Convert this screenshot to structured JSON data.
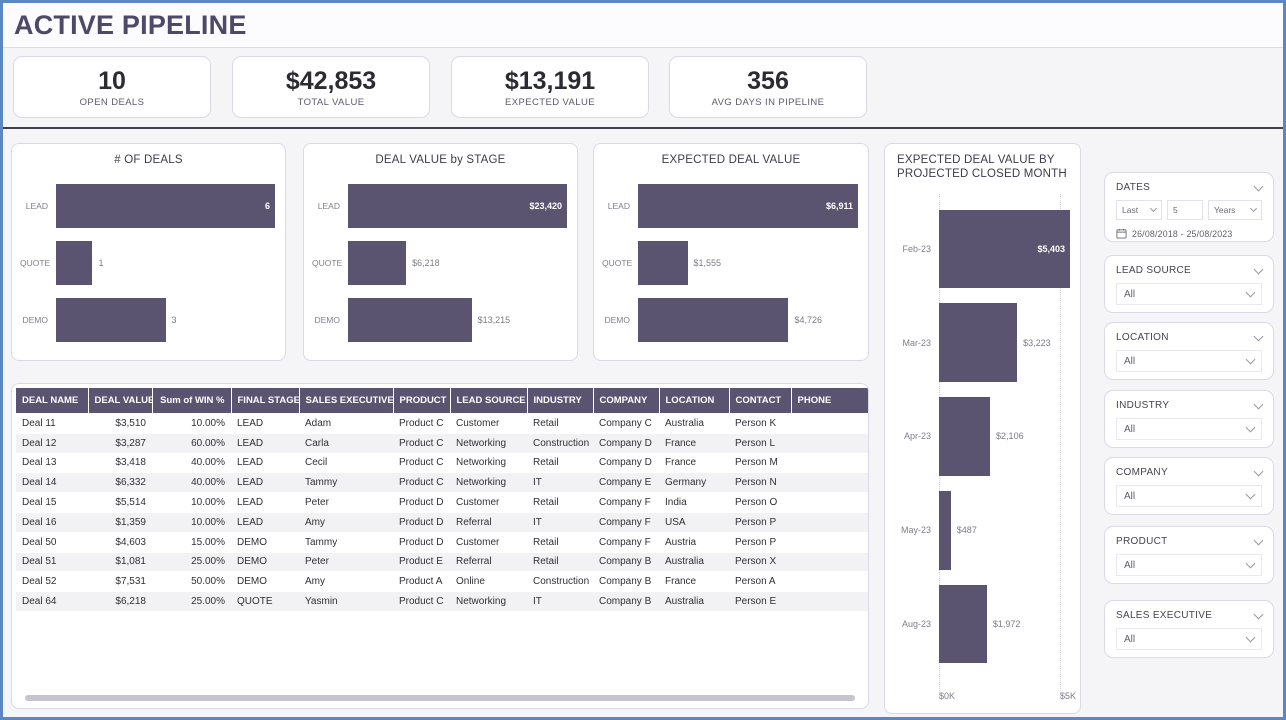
{
  "page": {
    "title": "ACTIVE PIPELINE",
    "accent_color": "#5B5471",
    "frame_color": "#5B87C5"
  },
  "kpis": [
    {
      "value": "10",
      "label": "OPEN DEALS"
    },
    {
      "value": "$42,853",
      "label": "TOTAL VALUE"
    },
    {
      "value": "$13,191",
      "label": "EXPECTED VALUE"
    },
    {
      "value": "356",
      "label": "AVG DAYS IN PIPELINE"
    }
  ],
  "chart_data": [
    {
      "type": "bar",
      "orientation": "horizontal",
      "title": "# OF DEALS",
      "categories": [
        "LEAD",
        "QUOTE",
        "DEMO"
      ],
      "values": [
        6,
        1,
        3
      ],
      "labels": [
        "6",
        "1",
        "3"
      ],
      "xlim": [
        0,
        6
      ],
      "grid": false,
      "bar_color": "#5B5471"
    },
    {
      "type": "bar",
      "orientation": "horizontal",
      "title": "DEAL VALUE by STAGE",
      "categories": [
        "LEAD",
        "QUOTE",
        "DEMO"
      ],
      "values": [
        23420,
        6218,
        13215
      ],
      "labels": [
        "$23,420",
        "$6,218",
        "$13,215"
      ],
      "xlim": [
        0,
        23420
      ],
      "grid": false,
      "bar_color": "#5B5471"
    },
    {
      "type": "bar",
      "orientation": "horizontal",
      "title": "EXPECTED DEAL VALUE",
      "categories": [
        "LEAD",
        "QUOTE",
        "DEMO"
      ],
      "values": [
        6911,
        1555,
        4726
      ],
      "labels": [
        "$6,911",
        "$1,555",
        "$4,726"
      ],
      "xlim": [
        0,
        6911
      ],
      "grid": false,
      "bar_color": "#5B5471"
    },
    {
      "type": "bar",
      "orientation": "horizontal",
      "title": "EXPECTED DEAL VALUE BY PROJECTED CLOSED MONTH",
      "categories": [
        "Feb-23",
        "Mar-23",
        "Apr-23",
        "May-23",
        "Aug-23"
      ],
      "values": [
        5403,
        3223,
        2106,
        487,
        1972
      ],
      "labels": [
        "$5,403",
        "$3,223",
        "$2,106",
        "$487",
        "$1,972"
      ],
      "x_ticks": [
        "$0K",
        "$5K"
      ],
      "x_tick_values": [
        0,
        5000
      ],
      "xlim": [
        0,
        5403
      ],
      "grid": true,
      "bar_color": "#5B5471"
    }
  ],
  "table": {
    "columns": [
      {
        "label": "DEAL NAME",
        "align": "left",
        "width": 72
      },
      {
        "label": "DEAL VALUE",
        "align": "right",
        "width": 64
      },
      {
        "label": "Sum of WIN %",
        "align": "right",
        "width": 79
      },
      {
        "label": "FINAL STAGE",
        "align": "left",
        "width": 68
      },
      {
        "label": "SALES EXECUTIVE",
        "align": "left",
        "width": 94
      },
      {
        "label": "PRODUCT",
        "align": "left",
        "width": 57
      },
      {
        "label": "LEAD SOURCE",
        "align": "left",
        "width": 77
      },
      {
        "label": "INDUSTRY",
        "align": "left",
        "width": 66
      },
      {
        "label": "COMPANY",
        "align": "left",
        "width": 66
      },
      {
        "label": "LOCATION",
        "align": "left",
        "width": 70
      },
      {
        "label": "CONTACT",
        "align": "left",
        "width": 62
      },
      {
        "label": "PHONE",
        "align": "left",
        "width": 80
      }
    ],
    "rows": [
      [
        "Deal 11",
        "$3,510",
        "10.00%",
        "LEAD",
        "Adam",
        "Product C",
        "Customer",
        "Retail",
        "Company C",
        "Australia",
        "Person K",
        ""
      ],
      [
        "Deal 12",
        "$3,287",
        "60.00%",
        "LEAD",
        "Carla",
        "Product C",
        "Networking",
        "Construction",
        "Company D",
        "France",
        "Person L",
        ""
      ],
      [
        "Deal 13",
        "$3,418",
        "40.00%",
        "LEAD",
        "Cecil",
        "Product C",
        "Networking",
        "Retail",
        "Company D",
        "France",
        "Person M",
        ""
      ],
      [
        "Deal 14",
        "$6,332",
        "40.00%",
        "LEAD",
        "Tammy",
        "Product C",
        "Networking",
        "IT",
        "Company E",
        "Germany",
        "Person N",
        ""
      ],
      [
        "Deal 15",
        "$5,514",
        "10.00%",
        "LEAD",
        "Peter",
        "Product D",
        "Customer",
        "Retail",
        "Company F",
        "India",
        "Person O",
        ""
      ],
      [
        "Deal 16",
        "$1,359",
        "10.00%",
        "LEAD",
        "Amy",
        "Product D",
        "Referral",
        "IT",
        "Company F",
        "USA",
        "Person P",
        ""
      ],
      [
        "Deal 50",
        "$4,603",
        "15.00%",
        "DEMO",
        "Tammy",
        "Product D",
        "Customer",
        "Retail",
        "Company F",
        "Austria",
        "Person P",
        ""
      ],
      [
        "Deal 51",
        "$1,081",
        "25.00%",
        "DEMO",
        "Peter",
        "Product E",
        "Referral",
        "Retail",
        "Company B",
        "Australia",
        "Person X",
        ""
      ],
      [
        "Deal 52",
        "$7,531",
        "50.00%",
        "DEMO",
        "Amy",
        "Product A",
        "Online",
        "Construction",
        "Company B",
        "France",
        "Person A",
        ""
      ],
      [
        "Deal 64",
        "$6,218",
        "25.00%",
        "QUOTE",
        "Yasmin",
        "Product C",
        "Networking",
        "IT",
        "Company B",
        "Australia",
        "Person E",
        ""
      ]
    ]
  },
  "filters": {
    "dates": {
      "label": "DATES",
      "mode": "Last",
      "number": "5",
      "unit": "Years",
      "range": "26/08/2018 - 25/08/2023"
    },
    "simple": [
      {
        "label": "LEAD SOURCE",
        "value": "All"
      },
      {
        "label": "LOCATION",
        "value": "All"
      },
      {
        "label": "INDUSTRY",
        "value": "All"
      },
      {
        "label": "COMPANY",
        "value": "All"
      },
      {
        "label": "PRODUCT",
        "value": "All"
      },
      {
        "label": "SALES EXECUTIVE",
        "value": "All"
      }
    ]
  }
}
